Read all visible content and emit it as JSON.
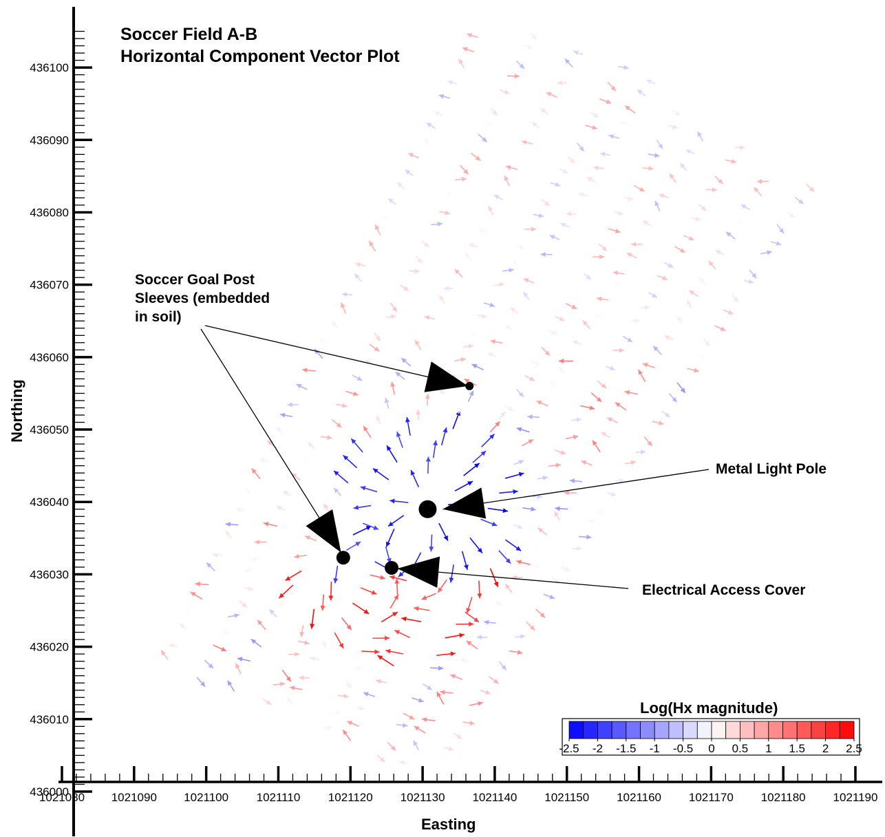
{
  "chart_data": {
    "type": "vector-field",
    "title_lines": [
      "Soccer Field A-B",
      "Horizontal Component Vector Plot"
    ],
    "xlabel": "Easting",
    "ylabel": "Northing",
    "xlim": [
      1021080,
      1021190
    ],
    "ylim": [
      436000,
      436105
    ],
    "x_ticks": [
      1021080,
      1021090,
      1021100,
      1021110,
      1021120,
      1021130,
      1021140,
      1021150,
      1021160,
      1021170,
      1021180,
      1021190
    ],
    "x_tick_labels": [
      "1021080",
      "1021090",
      "1021100",
      "1021110",
      "1021120",
      "1021130",
      "1021140",
      "1021150",
      "1021160",
      "1021170",
      "1021180",
      "1021190"
    ],
    "y_ticks": [
      436000,
      436010,
      436020,
      436030,
      436040,
      436050,
      436060,
      436070,
      436080,
      436090,
      436100
    ],
    "y_tick_labels": [
      "436000",
      "436010",
      "436020",
      "436030",
      "436040",
      "436050",
      "436060",
      "436070",
      "436080",
      "436090",
      "436100"
    ],
    "survey_lines": [
      {
        "start": [
          1021095,
          436018
        ],
        "end": [
          1021138,
          436104
        ]
      },
      {
        "start": [
          1021099,
          436016
        ],
        "end": [
          1021145,
          436105
        ]
      },
      {
        "start": [
          1021104,
          436014
        ],
        "end": [
          1021152,
          436102
        ]
      },
      {
        "start": [
          1021108,
          436013
        ],
        "end": [
          1021157,
          436100
        ]
      },
      {
        "start": [
          1021112,
          436012
        ],
        "end": [
          1021162,
          436098
        ]
      },
      {
        "start": [
          1021116,
          436009
        ],
        "end": [
          1021165,
          436094
        ]
      },
      {
        "start": [
          1021120,
          436007
        ],
        "end": [
          1021169,
          436090
        ]
      },
      {
        "start": [
          1021124,
          436005
        ],
        "end": [
          1021173,
          436089
        ]
      },
      {
        "start": [
          1021128,
          436004
        ],
        "end": [
          1021178,
          436084
        ]
      },
      {
        "start": [
          1021133,
          436006
        ],
        "end": [
          1021183,
          436084
        ]
      }
    ],
    "objects": [
      {
        "name": "Soccer Goal Post Sleeve",
        "x": 1021136.5,
        "y": 436056,
        "size": "small"
      },
      {
        "name": "Soccer Goal Post Sleeve",
        "x": 1021119,
        "y": 436032.3,
        "size": "medium"
      },
      {
        "name": "Electrical Access Cover",
        "x": 1021125.7,
        "y": 436030.9,
        "size": "medium"
      },
      {
        "name": "Metal Light Pole",
        "x": 1021130.7,
        "y": 436039,
        "size": "large"
      }
    ],
    "annotations": [
      {
        "text": [
          "Soccer Goal Post",
          "Sleeves (embedded",
          "in soil)"
        ],
        "targets": [
          [
            1021136.3,
            436056
          ],
          [
            1021118.7,
            436033
          ]
        ]
      },
      {
        "text": [
          "Metal Light Pole"
        ],
        "targets": [
          [
            1021132.8,
            436039
          ]
        ]
      },
      {
        "text": [
          "Electrical Access Cover"
        ],
        "targets": [
          [
            1021126.5,
            436030.8
          ]
        ]
      }
    ],
    "colorbar": {
      "title": "Log(Hx magnitude)",
      "range": [
        -2.5,
        2.5
      ],
      "labels": [
        "-2.5",
        "-2",
        "-1.5",
        "-1",
        "-0.5",
        "0",
        "0.5",
        "1",
        "1.5",
        "2",
        "2.5"
      ],
      "low_color": "#0000ff",
      "mid_color": "#ffffff",
      "high_color": "#ff0000"
    }
  }
}
